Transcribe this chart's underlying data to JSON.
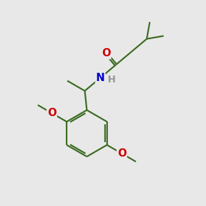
{
  "background_color": "#e8e8e8",
  "bond_color": "#3a6b20",
  "O_color": "#cc0000",
  "N_color": "#0000cc",
  "H_color": "#999999",
  "line_width": 1.6,
  "font_size_atoms": 11,
  "font_size_H": 10,
  "figsize": [
    3.0,
    3.0
  ],
  "dpi": 100,
  "xlim": [
    0,
    10
  ],
  "ylim": [
    0,
    10
  ]
}
